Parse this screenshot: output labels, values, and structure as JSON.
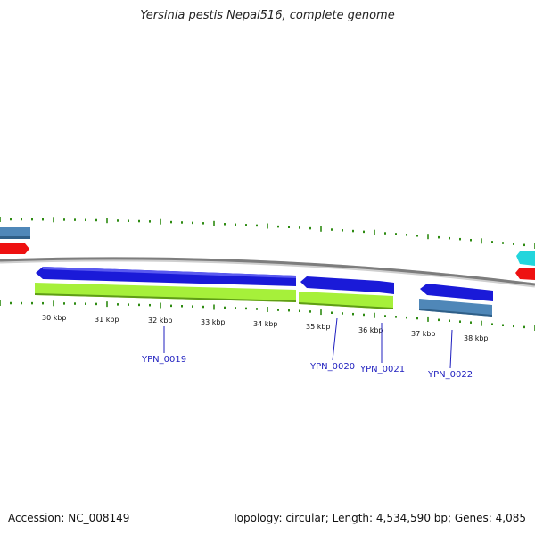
{
  "title": "Yersinia pestis Nepal516, complete genome",
  "footer": {
    "accession": "Accession: NC_008149",
    "summary": "Topology: circular; Length: 4,534,590 bp; Genes: 4,085"
  },
  "colors": {
    "backbone": "#8c8c8c",
    "tick": "#2e8b12",
    "cds_forward": "#1a1ad8",
    "cds_reverse": "#a6f03a",
    "gene_reverse": "#4f87b8",
    "red": "#ee1111",
    "cyan": "#22d5dc",
    "label": "#1f1fbf"
  },
  "scale": {
    "unit": "kbp",
    "labels": [
      "30 kbp",
      "31 kbp",
      "32 kbp",
      "33 kbp",
      "34 kbp",
      "35 kbp",
      "36 kbp",
      "37 kbp",
      "38 kbp"
    ]
  },
  "gene_labels": [
    "YPN_0019",
    "YPN_0020",
    "YPN_0021",
    "YPN_0022"
  ]
}
